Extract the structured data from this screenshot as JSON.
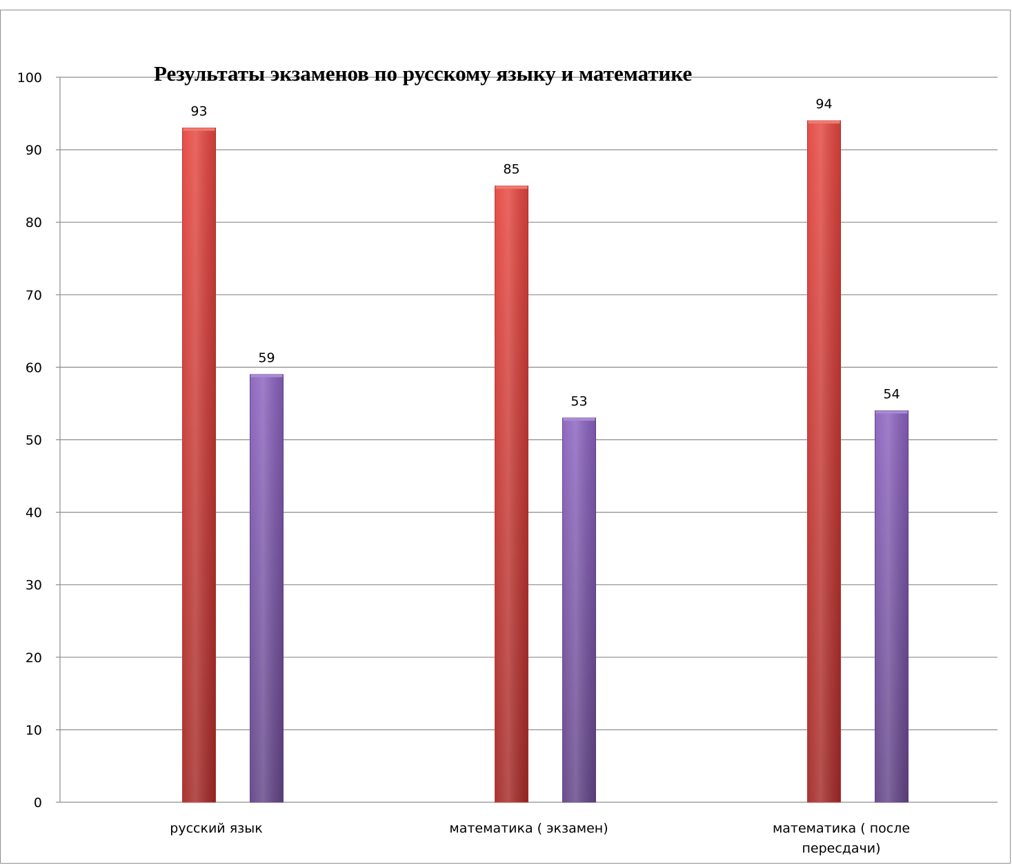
{
  "chart_data": {
    "type": "bar",
    "title": "Результаты экзаменов по русскому языку и математике",
    "xlabel": "",
    "ylabel": "",
    "categories": [
      "русский язык",
      "математика ( экзамен)",
      "математика ( после пересдачи)"
    ],
    "series": [
      {
        "values": [
          93,
          85,
          94
        ],
        "color": "#d63a36"
      },
      {
        "values": [
          59,
          53,
          54
        ],
        "color": "#7a55a8"
      }
    ],
    "ylim": [
      0,
      100
    ],
    "yticks": [
      0,
      10,
      20,
      30,
      40,
      50,
      60,
      70,
      80,
      90,
      100
    ],
    "grid": true,
    "legend": "none",
    "data_labels": true
  }
}
